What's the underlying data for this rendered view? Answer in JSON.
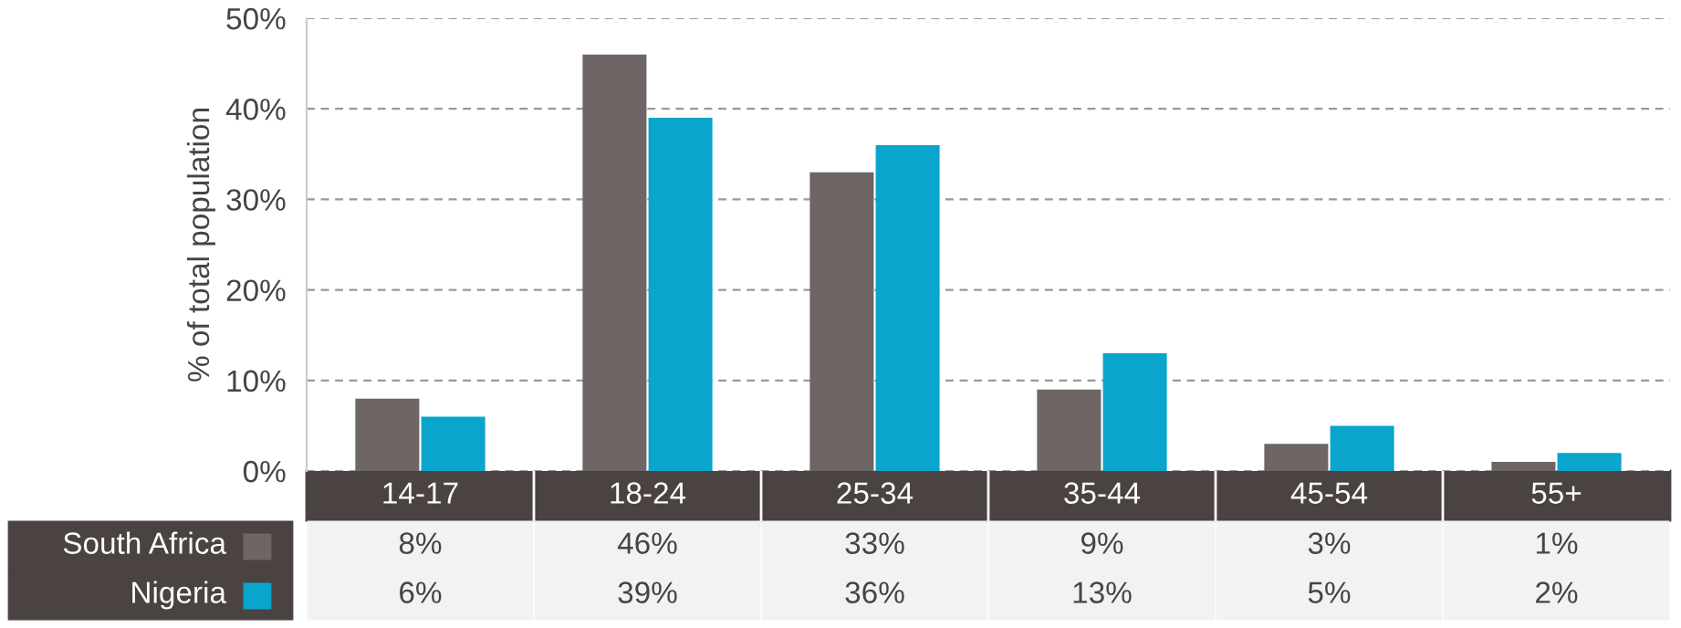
{
  "chart_data": {
    "type": "bar",
    "ylabel": "% of total population",
    "categories": [
      "14-17",
      "18-24",
      "25-34",
      "35-44",
      "45-54",
      "55+"
    ],
    "series": [
      {
        "name": "South Africa",
        "color": "#6d6665",
        "values": [
          8,
          46,
          33,
          9,
          3,
          1
        ],
        "value_labels": [
          "8%",
          "46%",
          "33%",
          "9%",
          "3%",
          "1%"
        ]
      },
      {
        "name": "Nigeria",
        "color": "#0aa5cc",
        "values": [
          6,
          39,
          36,
          13,
          5,
          2
        ],
        "value_labels": [
          "6%",
          "39%",
          "36%",
          "13%",
          "5%",
          "2%"
        ]
      }
    ],
    "ylim": [
      0,
      50
    ],
    "yticks": [
      {
        "value": 0,
        "label": "0%"
      },
      {
        "value": 10,
        "label": "10%"
      },
      {
        "value": 20,
        "label": "20%"
      },
      {
        "value": 30,
        "label": "30%"
      },
      {
        "value": 40,
        "label": "40%"
      },
      {
        "value": 50,
        "label": "50%"
      }
    ],
    "grid": "y",
    "legend": "bottom left"
  }
}
